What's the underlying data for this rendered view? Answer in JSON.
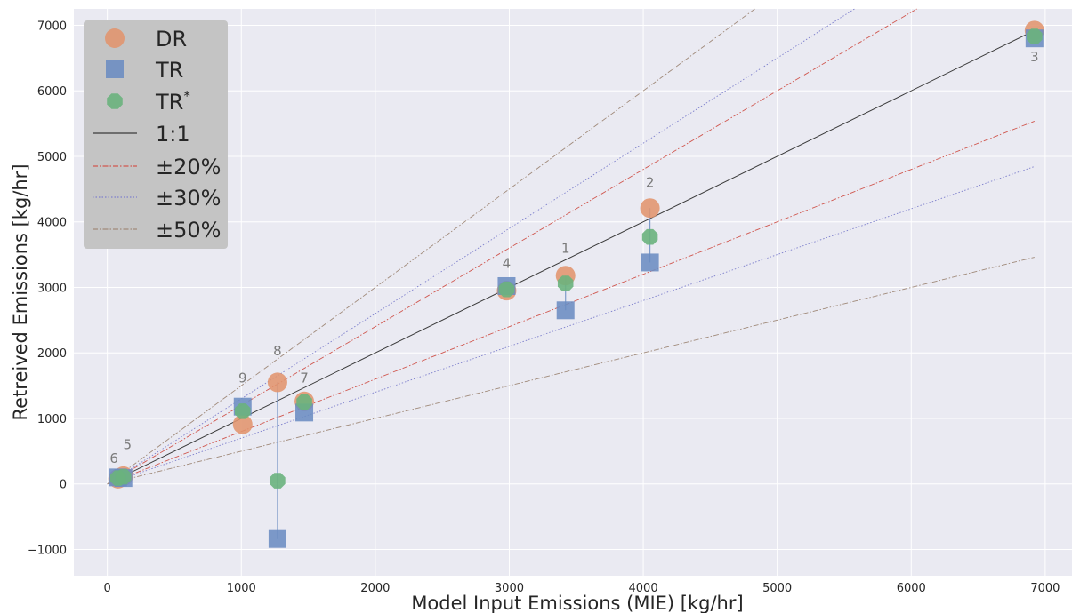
{
  "chart_data": {
    "type": "scatter",
    "xlabel": "Model Input Emissions (MIE) [kg/hr]",
    "ylabel": "Retreived Emissions [kg/hr]",
    "xlim": [
      -250,
      7200
    ],
    "ylim": [
      -1400,
      7250
    ],
    "xticks": [
      0,
      1000,
      2000,
      3000,
      4000,
      5000,
      6000,
      7000
    ],
    "yticks": [
      -1000,
      0,
      1000,
      2000,
      3000,
      4000,
      5000,
      6000,
      7000
    ],
    "grid": true,
    "legend_position": "top-left",
    "series": [
      {
        "name": "DR",
        "marker": "circle",
        "color": "#e1946d",
        "points": [
          [
            3420,
            3180
          ],
          [
            4050,
            4210
          ],
          [
            6920,
            6920
          ],
          [
            2980,
            2950
          ],
          [
            120,
            120
          ],
          [
            80,
            80
          ],
          [
            1470,
            1260
          ],
          [
            1270,
            1550
          ],
          [
            1010,
            910
          ]
        ]
      },
      {
        "name": "TR",
        "marker": "square",
        "color": "#6b8cc2",
        "points": [
          [
            3420,
            2650
          ],
          [
            4050,
            3380
          ],
          [
            6920,
            6800
          ],
          [
            2980,
            3020
          ],
          [
            120,
            90
          ],
          [
            80,
            100
          ],
          [
            1470,
            1090
          ],
          [
            1270,
            -840
          ],
          [
            1010,
            1180
          ]
        ]
      },
      {
        "name": "TR*",
        "name_base": "TR",
        "name_sup": "*",
        "marker": "octagon",
        "color": "#6ab27d",
        "points": [
          [
            3420,
            3060
          ],
          [
            4050,
            3770
          ],
          [
            6920,
            6830
          ],
          [
            2980,
            2970
          ],
          [
            120,
            110
          ],
          [
            80,
            90
          ],
          [
            1470,
            1250
          ],
          [
            1270,
            50
          ],
          [
            1010,
            1110
          ]
        ]
      }
    ],
    "reference_lines": [
      {
        "name": "1:1",
        "style": "solid",
        "color": "#3a3a3a",
        "slopes": [
          1.0
        ]
      },
      {
        "name": "±20%",
        "style": "dashdot",
        "color": "#d0574f",
        "slopes": [
          1.2,
          0.8
        ]
      },
      {
        "name": "±30%",
        "style": "dotted",
        "color": "#7d7fcc",
        "slopes": [
          1.3,
          0.7
        ]
      },
      {
        "name": "±50%",
        "style": "dashdot",
        "color": "#a08a7a",
        "slopes": [
          1.5,
          0.5
        ]
      }
    ],
    "ref_line_xmax": 6920,
    "point_labels": [
      {
        "text": "1",
        "x": 3420,
        "y": 3530
      },
      {
        "text": "2",
        "x": 4050,
        "y": 4530
      },
      {
        "text": "3",
        "x": 6920,
        "y": 6450
      },
      {
        "text": "4",
        "x": 2980,
        "y": 3300
      },
      {
        "text": "5",
        "x": 150,
        "y": 530
      },
      {
        "text": "6",
        "x": 50,
        "y": 320
      },
      {
        "text": "7",
        "x": 1470,
        "y": 1550
      },
      {
        "text": "8",
        "x": 1270,
        "y": 1960
      },
      {
        "text": "9",
        "x": 1010,
        "y": 1550
      }
    ],
    "connectors": [
      {
        "x": 1270,
        "from": 1550,
        "to": -840
      },
      {
        "x": 4050,
        "from": 4210,
        "to": 3380
      },
      {
        "x": 3420,
        "from": 3180,
        "to": 2650
      }
    ]
  }
}
